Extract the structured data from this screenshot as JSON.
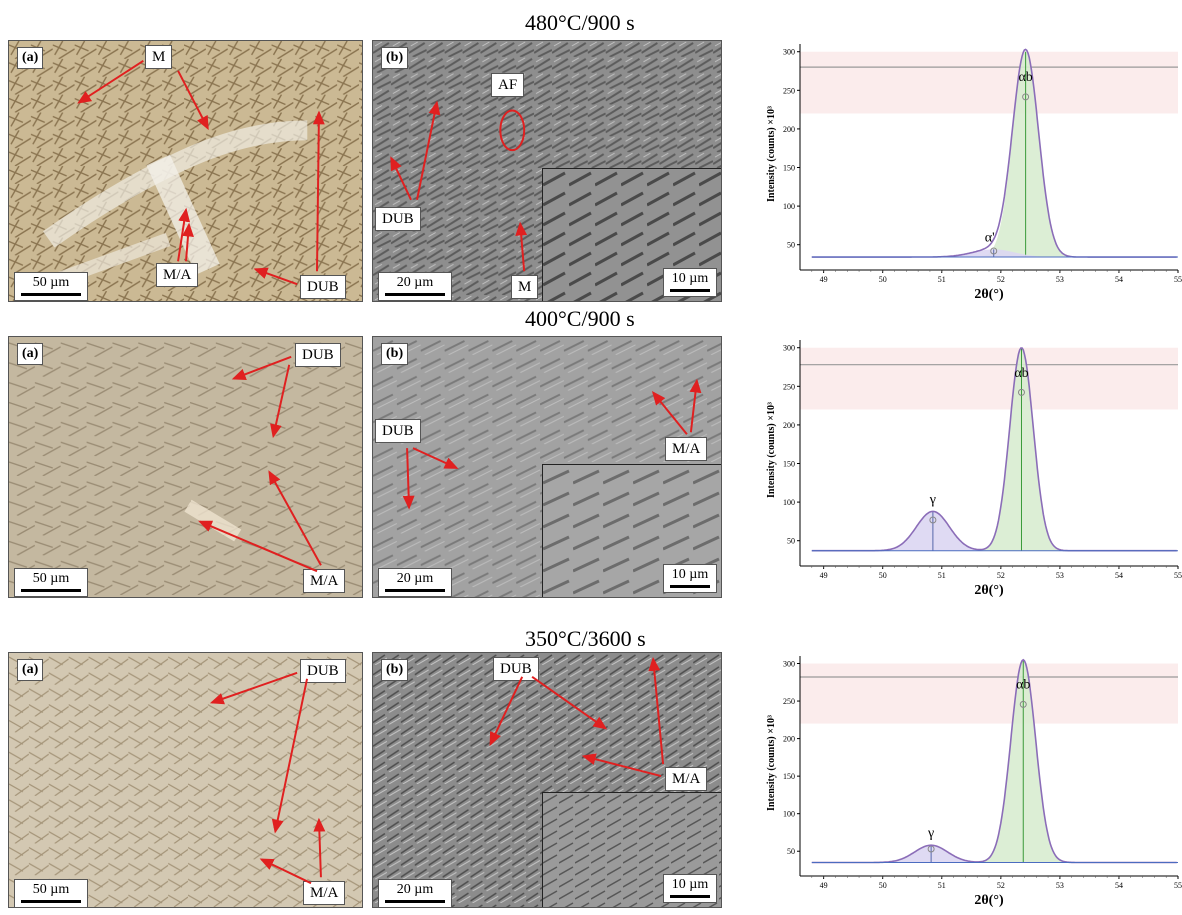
{
  "rows": [
    {
      "title": "480°C/900 s",
      "optical": {
        "tag": "(a)",
        "scale": "50 µm",
        "labels": [
          "M",
          "M/A",
          "DUB"
        ]
      },
      "sem": {
        "tag": "(b)",
        "scale": "20 µm",
        "inset_scale": "10 µm",
        "labels": [
          "AF",
          "DUB",
          "M"
        ]
      },
      "xrd": {
        "ylabel": "Intensity (counts) ×10³",
        "xlabel": "2θ(°)",
        "peaks": [
          "αb",
          "α'"
        ]
      }
    },
    {
      "title": "400°C/900 s",
      "optical": {
        "tag": "(a)",
        "scale": "50 µm",
        "labels": [
          "DUB",
          "M/A"
        ]
      },
      "sem": {
        "tag": "(b)",
        "scale": "20 µm",
        "inset_scale": "10 µm",
        "labels": [
          "DUB",
          "M/A"
        ]
      },
      "xrd": {
        "ylabel": "Intensity (counts) ×10³",
        "xlabel": "2θ(°)",
        "peaks": [
          "αb",
          "γ"
        ]
      }
    },
    {
      "title": "350°C/3600 s",
      "optical": {
        "tag": "(a)",
        "scale": "50 µm",
        "labels": [
          "DUB",
          "M/A"
        ]
      },
      "sem": {
        "tag": "(b)",
        "scale": "20 µm",
        "inset_scale": "10 µm",
        "labels": [
          "DUB",
          "M/A"
        ]
      },
      "xrd": {
        "ylabel": "Intensity (counts) ×10³",
        "xlabel": "2θ(°)",
        "peaks": [
          "αb",
          "γ"
        ]
      }
    }
  ],
  "chart_data": [
    {
      "type": "line",
      "xlabel": "2θ(°)",
      "ylabel": "Intensity (counts) ×10³",
      "xlim": [
        48.6,
        55
      ],
      "ylim": [
        25,
        310
      ],
      "x_ticks": [
        49,
        50,
        51,
        52,
        53,
        54,
        55
      ],
      "y_ticks": [
        50,
        100,
        150,
        200,
        250,
        300
      ],
      "peaks": [
        {
          "name": "αb",
          "center": 52.42,
          "height": 300,
          "width": 0.22
        },
        {
          "name": "α'",
          "center": 51.88,
          "height": 44,
          "width": 0.35
        }
      ],
      "baseline": 34,
      "residual_level": 280
    },
    {
      "type": "line",
      "xlabel": "2θ(°)",
      "ylabel": "Intensity (counts) ×10³",
      "xlim": [
        48.6,
        55
      ],
      "ylim": [
        25,
        310
      ],
      "x_ticks": [
        49,
        50,
        51,
        52,
        53,
        54,
        55
      ],
      "y_ticks": [
        50,
        100,
        150,
        200,
        250,
        300
      ],
      "peaks": [
        {
          "name": "αb",
          "center": 52.35,
          "height": 300,
          "width": 0.2
        },
        {
          "name": "γ",
          "center": 50.85,
          "height": 88,
          "width": 0.28
        }
      ],
      "baseline": 37,
      "residual_level": 278
    },
    {
      "type": "line",
      "xlabel": "2θ(°)",
      "ylabel": "Intensity (counts) ×10³",
      "xlim": [
        48.6,
        55
      ],
      "ylim": [
        25,
        310
      ],
      "x_ticks": [
        49,
        50,
        51,
        52,
        53,
        54,
        55
      ],
      "y_ticks": [
        50,
        100,
        150,
        200,
        250,
        300
      ],
      "peaks": [
        {
          "name": "αb",
          "center": 52.38,
          "height": 305,
          "width": 0.21
        },
        {
          "name": "γ",
          "center": 50.82,
          "height": 58,
          "width": 0.28
        }
      ],
      "baseline": 35,
      "residual_level": 282
    }
  ],
  "colors": {
    "arrow": "#e02020",
    "optical_bg": "#cdbf9e",
    "sem_bg": "#8a8a8a",
    "peak_alpha": "#d8ecd0",
    "peak_gamma": "#dcd6f2",
    "fit_line": "#8b6db8"
  }
}
